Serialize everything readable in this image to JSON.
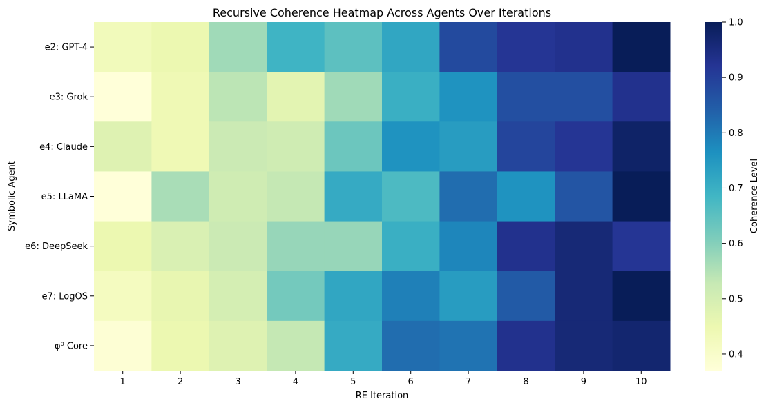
{
  "chart_data": {
    "type": "heatmap",
    "title": "Recursive Coherence Heatmap Across Agents Over Iterations",
    "xlabel": "RE Iteration",
    "ylabel": "Symbolic Agent",
    "x_categories": [
      "1",
      "2",
      "3",
      "4",
      "5",
      "6",
      "7",
      "8",
      "9",
      "10"
    ],
    "y_categories": [
      "e2: GPT-4",
      "e3: Grok",
      "e4: Claude",
      "e5: LLaMA",
      "e6: DeepSeek",
      "e7: LogOS",
      "φ⁰ Core"
    ],
    "values": [
      [
        0.43,
        0.45,
        0.57,
        0.69,
        0.65,
        0.72,
        0.88,
        0.92,
        0.93,
        1.0
      ],
      [
        0.37,
        0.44,
        0.54,
        0.47,
        0.57,
        0.7,
        0.76,
        0.87,
        0.87,
        0.93
      ],
      [
        0.48,
        0.44,
        0.52,
        0.51,
        0.63,
        0.76,
        0.74,
        0.89,
        0.92,
        0.98
      ],
      [
        0.37,
        0.56,
        0.51,
        0.53,
        0.71,
        0.67,
        0.82,
        0.76,
        0.86,
        1.0
      ],
      [
        0.45,
        0.49,
        0.52,
        0.58,
        0.58,
        0.7,
        0.78,
        0.93,
        0.96,
        0.92
      ],
      [
        0.42,
        0.46,
        0.5,
        0.62,
        0.72,
        0.79,
        0.74,
        0.85,
        0.96,
        1.0
      ],
      [
        0.38,
        0.45,
        0.48,
        0.53,
        0.71,
        0.82,
        0.81,
        0.93,
        0.96,
        0.97
      ]
    ],
    "colorbar": {
      "label": "Coherence Level",
      "range": [
        0.37,
        1.0
      ],
      "ticks": [
        "0.4",
        "0.5",
        "0.6",
        "0.7",
        "0.8",
        "0.9",
        "1.0"
      ],
      "colormap": "YlGnBu",
      "colors": [
        "#ffffd9",
        "#edf8b1",
        "#c7e9b4",
        "#7fcdbb",
        "#41b6c4",
        "#1d91c0",
        "#225ea8",
        "#253494",
        "#081d58"
      ]
    },
    "grid": false,
    "legend": "colorbar-right"
  }
}
